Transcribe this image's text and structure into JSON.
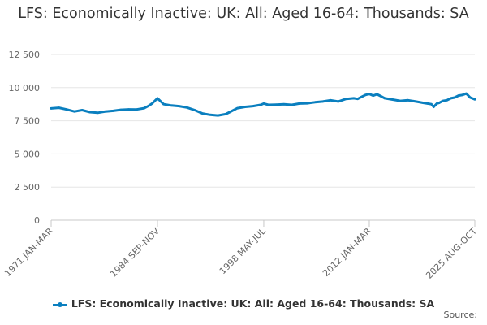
{
  "chart_data": {
    "type": "line",
    "title": "LFS: Economically Inactive: UK: All: Aged 16-64: Thousands: SA",
    "xlabel": "",
    "ylabel": "",
    "ylim": [
      0,
      12500
    ],
    "yticks": [
      0,
      2500,
      5000,
      7500,
      10000,
      12500
    ],
    "ytick_labels": [
      "0",
      "2 500",
      "5 000",
      "7 500",
      "10 000",
      "12 500"
    ],
    "xlim": [
      1971.0,
      2025.6
    ],
    "xtick_labels": [
      {
        "x": 1971.0,
        "label": "1971 JAN-MAR"
      },
      {
        "x": 1984.7,
        "label": "1984 SEP-NOV"
      },
      {
        "x": 1998.4,
        "label": "1998 MAY-JUL"
      },
      {
        "x": 2012.0,
        "label": "2012 JAN-MAR"
      },
      {
        "x": 2025.6,
        "label": "2025 AUG-OCT"
      }
    ],
    "grid": true,
    "legend_position": "bottom",
    "series": [
      {
        "name": "LFS: Economically Inactive: UK: All: Aged 16-64: Thousands: SA",
        "color": "#0a7fbf",
        "x": [
          1971.0,
          1972.0,
          1973.0,
          1974.0,
          1975.0,
          1976.0,
          1977.0,
          1978.0,
          1979.0,
          1980.0,
          1981.0,
          1982.0,
          1983.0,
          1983.5,
          1984.0,
          1984.7,
          1985.5,
          1986.5,
          1987.5,
          1988.5,
          1989.5,
          1990.5,
          1991.5,
          1992.5,
          1993.5,
          1994.0,
          1995.0,
          1996.0,
          1997.0,
          1998.0,
          1998.4,
          1999.0,
          2000.0,
          2001.0,
          2002.0,
          2003.0,
          2004.0,
          2005.0,
          2006.0,
          2007.0,
          2008.0,
          2009.0,
          2010.0,
          2010.5,
          2011.0,
          2011.5,
          2012.0,
          2012.5,
          2013.0,
          2013.5,
          2014.0,
          2015.0,
          2016.0,
          2017.0,
          2018.0,
          2019.0,
          2019.5,
          2020.0,
          2020.3,
          2020.7,
          2021.0,
          2021.5,
          2022.0,
          2022.5,
          2023.0,
          2023.5,
          2024.0,
          2024.5,
          2025.0,
          2025.6
        ],
        "values": [
          8430,
          8480,
          8350,
          8200,
          8300,
          8150,
          8100,
          8200,
          8250,
          8330,
          8360,
          8350,
          8450,
          8600,
          8800,
          9200,
          8750,
          8650,
          8600,
          8500,
          8300,
          8050,
          7950,
          7900,
          8000,
          8150,
          8450,
          8550,
          8600,
          8700,
          8800,
          8700,
          8720,
          8750,
          8700,
          8800,
          8820,
          8900,
          8950,
          9050,
          8950,
          9150,
          9200,
          9150,
          9300,
          9450,
          9520,
          9400,
          9500,
          9350,
          9200,
          9100,
          9000,
          9050,
          8950,
          8850,
          8800,
          8750,
          8550,
          8800,
          8850,
          9000,
          9050,
          9200,
          9250,
          9400,
          9450,
          9550,
          9250,
          9120
        ]
      }
    ]
  },
  "legend": {
    "label": "LFS: Economically Inactive: UK: All: Aged 16-64: Thousands: SA"
  },
  "source_label": "Source:"
}
